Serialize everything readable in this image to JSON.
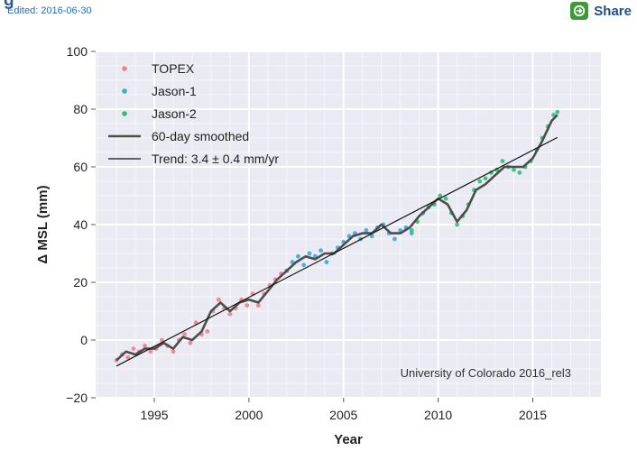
{
  "header": {
    "heading": "g",
    "edited": "Edited: 2016-06-30",
    "share_label": "Share"
  },
  "chart_data": {
    "type": "scatter",
    "title": "",
    "xlabel": "Year",
    "ylabel": "Δ MSL (mm)",
    "xlim": [
      1991.9,
      2018.6
    ],
    "ylim": [
      -20,
      100
    ],
    "xticks": [
      1995,
      2000,
      2005,
      2010,
      2015
    ],
    "yticks": [
      -20,
      0,
      20,
      40,
      60,
      80,
      100
    ],
    "xtick_labels": [
      "1995",
      "2000",
      "2005",
      "2010",
      "2015"
    ],
    "ytick_labels": [
      "−20",
      "0",
      "20",
      "40",
      "60",
      "80",
      "100"
    ],
    "grid": true,
    "legend_position": "top-left",
    "annotation": "University of Colorado 2016_rel3",
    "series": [
      {
        "name": "TOPEX",
        "kind": "points",
        "color": "#f07e8e",
        "x": [
          1993.0,
          1993.3,
          1993.6,
          1993.9,
          1994.2,
          1994.5,
          1994.8,
          1995.1,
          1995.4,
          1995.7,
          1996.0,
          1996.3,
          1996.6,
          1996.9,
          1997.2,
          1997.5,
          1997.8,
          1998.1,
          1998.4,
          1998.7,
          1999.0,
          1999.3,
          1999.6,
          1999.9,
          2000.2,
          2000.5,
          2000.8,
          2001.1,
          2001.4,
          2001.7,
          2002.0
        ],
        "y": [
          -7,
          -5,
          -6,
          -3,
          -4,
          -2,
          -4,
          -3,
          0,
          -2,
          -4,
          0,
          2,
          -1,
          6,
          2,
          3,
          10,
          14,
          11,
          9,
          11,
          14,
          12,
          16,
          12,
          16,
          19,
          21,
          23,
          24
        ]
      },
      {
        "name": "Jason-1",
        "kind": "points",
        "color": "#3aa9d8",
        "x": [
          2002.0,
          2002.3,
          2002.6,
          2002.9,
          2003.2,
          2003.5,
          2003.8,
          2004.1,
          2004.4,
          2004.7,
          2005.0,
          2005.3,
          2005.6,
          2005.9,
          2006.2,
          2006.5,
          2006.8,
          2007.1,
          2007.4,
          2007.7,
          2008.0,
          2008.3,
          2008.6
        ],
        "y": [
          24,
          27,
          29,
          26,
          30,
          29,
          31,
          27,
          30,
          32,
          34,
          36,
          37,
          35,
          38,
          36,
          39,
          40,
          37,
          35,
          38,
          39,
          37
        ]
      },
      {
        "name": "Jason-2",
        "kind": "points",
        "color": "#2fbf78",
        "x": [
          2008.6,
          2008.9,
          2009.2,
          2009.5,
          2009.8,
          2010.1,
          2010.4,
          2010.7,
          2011.0,
          2011.3,
          2011.6,
          2011.9,
          2012.2,
          2012.5,
          2012.8,
          2013.1,
          2013.4,
          2013.7,
          2014.0,
          2014.3,
          2014.6,
          2014.9,
          2015.2,
          2015.5,
          2015.8,
          2016.1,
          2016.3
        ],
        "y": [
          38,
          41,
          44,
          46,
          47,
          50,
          49,
          44,
          40,
          43,
          47,
          52,
          55,
          56,
          58,
          59,
          62,
          60,
          59,
          58,
          60,
          62,
          66,
          70,
          74,
          78,
          79
        ]
      },
      {
        "name": "60-day smoothed",
        "kind": "line",
        "color": "#4d4d4d",
        "x": [
          1993.0,
          1993.5,
          1994.0,
          1994.5,
          1995.0,
          1995.5,
          1996.0,
          1996.5,
          1997.0,
          1997.5,
          1998.0,
          1998.5,
          1999.0,
          1999.5,
          2000.0,
          2000.5,
          2001.0,
          2001.5,
          2002.0,
          2002.5,
          2003.0,
          2003.5,
          2004.0,
          2004.5,
          2005.0,
          2005.5,
          2006.0,
          2006.5,
          2007.0,
          2007.5,
          2008.0,
          2008.5,
          2009.0,
          2009.5,
          2010.0,
          2010.5,
          2011.0,
          2011.5,
          2012.0,
          2012.5,
          2013.0,
          2013.5,
          2014.0,
          2014.5,
          2015.0,
          2015.5,
          2016.0,
          2016.3
        ],
        "y": [
          -7,
          -4,
          -5,
          -3,
          -3,
          -1,
          -3,
          1,
          0,
          3,
          10,
          13,
          10,
          13,
          14,
          13,
          17,
          21,
          24,
          27,
          29,
          28,
          30,
          30,
          33,
          36,
          37,
          37,
          40,
          37,
          37,
          39,
          43,
          46,
          49,
          47,
          41,
          45,
          52,
          54,
          57,
          60,
          60,
          60,
          63,
          69,
          76,
          78
        ]
      },
      {
        "name": "Trend: 3.4 ± 0.4 mm/yr",
        "kind": "trend",
        "color": "#111111",
        "x": [
          1993.0,
          2016.3
        ],
        "y": [
          -9,
          70.2
        ]
      }
    ]
  }
}
